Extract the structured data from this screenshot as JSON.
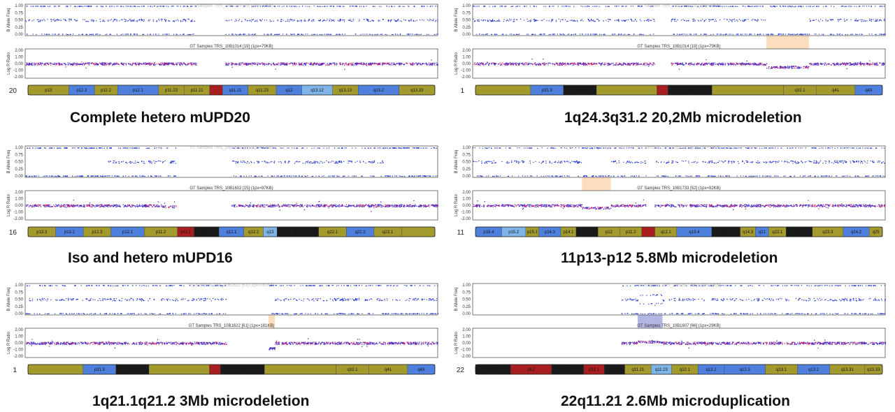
{
  "panels": [
    {
      "caption": "Complete hetero mUPD20",
      "chromosome": "20",
      "baf_title": "GT Samples TRS_10B1014 [19] (1px=79KB)",
      "lrr_title": "GT Samples TRS_10B1014 [19] (1px=79KB)",
      "gaps": [
        [
          0.415,
          0.485
        ]
      ],
      "baf_mode": "het",
      "highlight": null,
      "lrr_events": [],
      "bands": [
        {
          "label": "p13",
          "color": "olive",
          "w": 1.6
        },
        {
          "label": "p12.3",
          "color": "blue",
          "w": 1
        },
        {
          "label": "p12.2",
          "color": "olive",
          "w": 0.9
        },
        {
          "label": "p12.1",
          "color": "blue",
          "w": 1.6
        },
        {
          "label": "p11.23",
          "color": "olive",
          "w": 1
        },
        {
          "label": "p11.21",
          "color": "olive",
          "w": 1
        },
        {
          "label": "",
          "color": "red",
          "w": 0.5
        },
        {
          "label": "q11.21",
          "color": "blue",
          "w": 1
        },
        {
          "label": "q11.23",
          "color": "olive",
          "w": 1.1
        },
        {
          "label": "q12",
          "color": "blue",
          "w": 1
        },
        {
          "label": "q13.12",
          "color": "light",
          "w": 1.2
        },
        {
          "label": "q13.13",
          "color": "olive",
          "w": 1
        },
        {
          "label": "q13.2",
          "color": "blue",
          "w": 1.6
        },
        {
          "label": "q13.33",
          "color": "olive",
          "w": 1.4
        }
      ]
    },
    {
      "caption": "1q24.3q31.2 20,2Mb microdeletion",
      "chromosome": "1",
      "baf_title": "GT Samples TRS_10B1014 [19] (1px=79KB)",
      "lrr_title": "GT Samples TRS_10B1014 [19] (1px=79KB)",
      "gaps": [
        [
          0.44,
          0.48
        ]
      ],
      "baf_mode": "het",
      "highlight": {
        "from": 0.712,
        "to": 0.815,
        "color": "peach"
      },
      "lrr_events": [
        {
          "from": 0.712,
          "to": 0.815,
          "shift": -0.5
        }
      ],
      "bands": [
        {
          "label": "",
          "color": "olive",
          "w": 2
        },
        {
          "label": "p31.3",
          "color": "blue",
          "w": 1.2
        },
        {
          "label": "p31.1",
          "color": "black",
          "w": 1.2
        },
        {
          "label": "",
          "color": "olive",
          "w": 2.2
        },
        {
          "label": "",
          "color": "red",
          "w": 0.4
        },
        {
          "label": "q12",
          "color": "black",
          "w": 1.6
        },
        {
          "label": "",
          "color": "olive",
          "w": 2.6
        },
        {
          "label": "q32.1",
          "color": "olive",
          "w": 1.2
        },
        {
          "label": "q41",
          "color": "olive",
          "w": 1.4
        },
        {
          "label": "q43",
          "color": "blue",
          "w": 1
        }
      ]
    },
    {
      "caption": "Iso and hetero mUPD16",
      "chromosome": "16",
      "baf_title": "GT Samples TRS_10B1602 [15] (1px=97KB)",
      "lrr_title": "GT Samples TRS_10B1602 [15] (1px=97KB)",
      "gaps": [
        [
          0.365,
          0.5
        ]
      ],
      "baf_mode": "iso",
      "highlight": null,
      "lrr_events": [
        {
          "from": 0.33,
          "to": 0.365,
          "shift": -0.15
        }
      ],
      "bands": [
        {
          "label": "p13.3",
          "color": "olive",
          "w": 1
        },
        {
          "label": "p13.2",
          "color": "blue",
          "w": 1
        },
        {
          "label": "p12.3",
          "color": "olive",
          "w": 1
        },
        {
          "label": "p12.1",
          "color": "blue",
          "w": 1.2
        },
        {
          "label": "p11.2",
          "color": "olive",
          "w": 1.2
        },
        {
          "label": "p11.1",
          "color": "red",
          "w": 0.6
        },
        {
          "label": "q11.2",
          "color": "black",
          "w": 0.9
        },
        {
          "label": "q12.1",
          "color": "blue",
          "w": 0.9
        },
        {
          "label": "q12.2",
          "color": "olive",
          "w": 0.7
        },
        {
          "label": "q13",
          "color": "light",
          "w": 0.5
        },
        {
          "label": "q21",
          "color": "black",
          "w": 1.5
        },
        {
          "label": "q22.1",
          "color": "olive",
          "w": 1
        },
        {
          "label": "q22.3",
          "color": "blue",
          "w": 1
        },
        {
          "label": "q23.1",
          "color": "olive",
          "w": 1
        },
        {
          "label": "",
          "color": "olive",
          "w": 1.2
        }
      ]
    },
    {
      "caption": "11p13-p12 5.8Mb microdeletion",
      "chromosome": "11",
      "baf_title": "GT Samples TRS_10B1733 [52] (1px=92KB)",
      "lrr_title": "GT Samples TRS_10B1733 [52] (1px=92KB)",
      "gaps": [
        [
          0.42,
          0.44
        ]
      ],
      "baf_mode": "het",
      "highlight": {
        "from": 0.265,
        "to": 0.335,
        "color": "peach"
      },
      "lrr_events": [
        {
          "from": 0.265,
          "to": 0.335,
          "shift": -0.35
        }
      ],
      "bands": [
        {
          "label": "p15.4",
          "color": "blue",
          "w": 1.2
        },
        {
          "label": "p15.2",
          "color": "light",
          "w": 1.1
        },
        {
          "label": "p15.1",
          "color": "olive",
          "w": 0.6
        },
        {
          "label": "p14.3",
          "color": "blue",
          "w": 1
        },
        {
          "label": "p14.1",
          "color": "olive",
          "w": 0.7
        },
        {
          "label": "p13",
          "color": "black",
          "w": 1
        },
        {
          "label": "p12",
          "color": "olive",
          "w": 1
        },
        {
          "label": "p11.2",
          "color": "olive",
          "w": 1
        },
        {
          "label": "",
          "color": "red",
          "w": 0.6
        },
        {
          "label": "q12.1",
          "color": "olive",
          "w": 1
        },
        {
          "label": "q13.4",
          "color": "blue",
          "w": 1.6
        },
        {
          "label": "q14.1",
          "color": "black",
          "w": 1.3
        },
        {
          "label": "q14.3",
          "color": "olive",
          "w": 0.7
        },
        {
          "label": "q21",
          "color": "blue",
          "w": 0.6
        },
        {
          "label": "q22.1",
          "color": "olive",
          "w": 0.8
        },
        {
          "label": "q22.3",
          "color": "black",
          "w": 1.2
        },
        {
          "label": "q23.3",
          "color": "olive",
          "w": 1.4
        },
        {
          "label": "q24.2",
          "color": "blue",
          "w": 1.2
        },
        {
          "label": "q25",
          "color": "olive",
          "w": 0.6
        }
      ]
    },
    {
      "caption": "1q21.1q21.2 3Mb microdeletion",
      "chromosome": "1",
      "baf_title": "GT Samples TRS_10B1622 [61] (1px=181KB)",
      "lrr_title": "GT Samples TRS_10B1622 [61] (1px=181KB)",
      "gaps": [
        [
          0.488,
          0.59
        ]
      ],
      "baf_mode": "het",
      "highlight": {
        "from": 0.59,
        "to": 0.605,
        "color": "peach"
      },
      "lrr_events": [
        {
          "from": 0.59,
          "to": 0.605,
          "shift": -0.8
        }
      ],
      "bands": [
        {
          "label": "",
          "color": "olive",
          "w": 2
        },
        {
          "label": "p31.3",
          "color": "blue",
          "w": 1.2
        },
        {
          "label": "p31.1",
          "color": "black",
          "w": 1.2
        },
        {
          "label": "",
          "color": "olive",
          "w": 2.2
        },
        {
          "label": "",
          "color": "red",
          "w": 0.4
        },
        {
          "label": "q12",
          "color": "black",
          "w": 1.6
        },
        {
          "label": "",
          "color": "olive",
          "w": 2.6
        },
        {
          "label": "q32.1",
          "color": "olive",
          "w": 1.2
        },
        {
          "label": "q41",
          "color": "olive",
          "w": 1.4
        },
        {
          "label": "q43",
          "color": "blue",
          "w": 1
        }
      ]
    },
    {
      "caption": "22q11.21 2.6Mb microduplication",
      "chromosome": "22",
      "baf_title": "GT Samples TRS_10B1607 [66] (1px=29KB)",
      "lrr_title": "GT Samples TRS_10B1607 [66] (1px=29KB)",
      "gaps": [
        [
          0.0,
          0.36
        ]
      ],
      "baf_mode": "het",
      "highlight": {
        "from": 0.4,
        "to": 0.46,
        "color": "lavender"
      },
      "lrr_events": [
        {
          "from": 0.4,
          "to": 0.46,
          "shift": 0.2
        }
      ],
      "bands": [
        {
          "label": "p13",
          "color": "black",
          "w": 1.2
        },
        {
          "label": "p12",
          "color": "red",
          "w": 1.4
        },
        {
          "label": "p11.2",
          "color": "black",
          "w": 1.1
        },
        {
          "label": "p11.1",
          "color": "red",
          "w": 0.7
        },
        {
          "label": "q11.1",
          "color": "black",
          "w": 0.7
        },
        {
          "label": "q11.21",
          "color": "olive",
          "w": 0.9
        },
        {
          "label": "q11.23",
          "color": "light",
          "w": 0.7
        },
        {
          "label": "q12.1",
          "color": "olive",
          "w": 0.9
        },
        {
          "label": "q12.2",
          "color": "blue",
          "w": 0.9
        },
        {
          "label": "q12.3",
          "color": "blue",
          "w": 1.4
        },
        {
          "label": "q13.1",
          "color": "olive",
          "w": 1.1
        },
        {
          "label": "q13.2",
          "color": "blue",
          "w": 1.1
        },
        {
          "label": "q13.31",
          "color": "olive",
          "w": 1.2
        },
        {
          "label": "q13.33",
          "color": "olive",
          "w": 0.6
        }
      ]
    }
  ],
  "axes": {
    "baf_label": "B Allele Freq",
    "lrr_label": "Log R Ratio",
    "baf_ticks": [
      "1.00",
      "0.75",
      "0.50",
      "0.25",
      "0.00"
    ],
    "lrr_ticks": [
      "2.00",
      "1.00",
      "0.00",
      "-1.00",
      "-2.00"
    ]
  },
  "colors": {
    "baf_points": "#2233cc",
    "lrr_points": "#3a2ccc",
    "lrr_red": "#d6226c",
    "peach": "#fcd9b6",
    "lavender": "#aab0e0",
    "olive": "#a39a2e",
    "blue": "#4f7fdc",
    "light": "#7fb4e8",
    "black": "#1a1a1a",
    "red": "#a81e1e"
  }
}
